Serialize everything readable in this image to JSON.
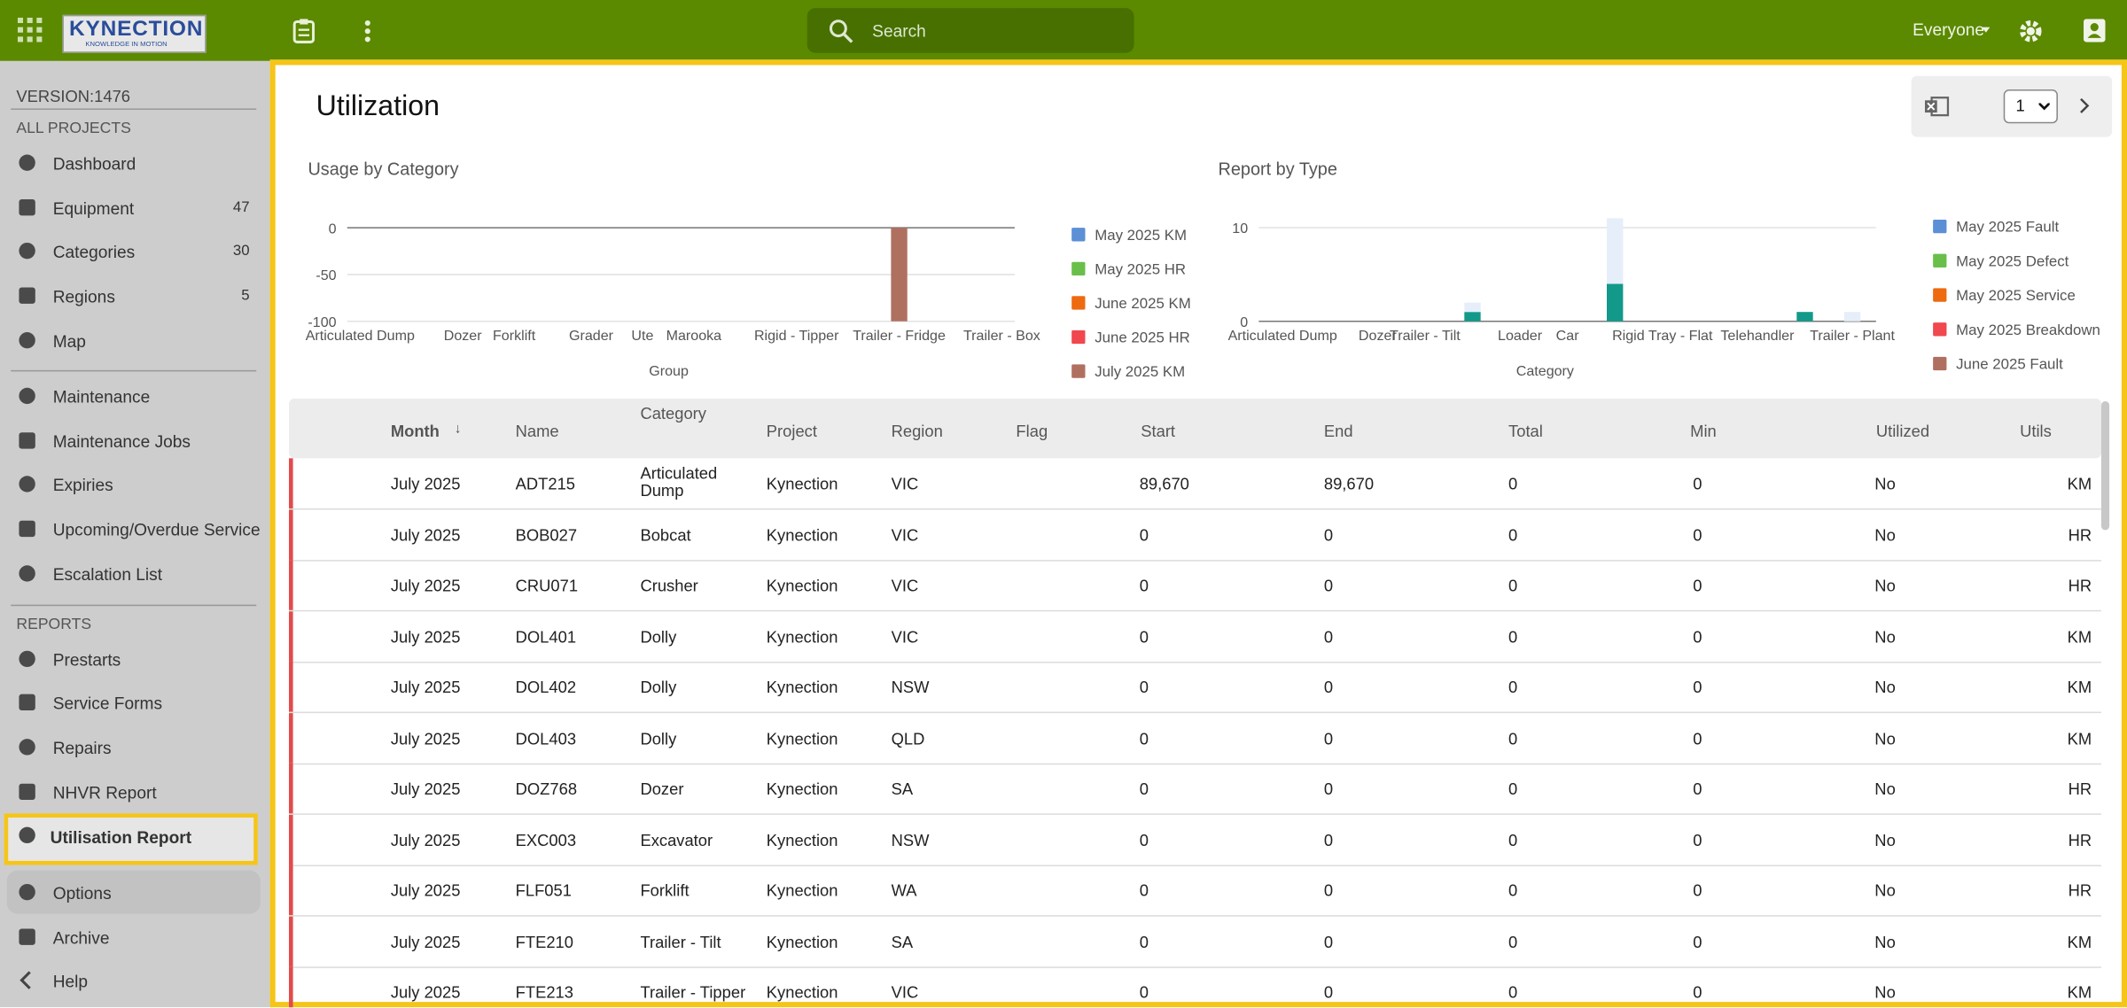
{
  "topbar": {
    "logo": "KYNECTION",
    "logo_tagline": "KNOWLEDGE IN MOTION",
    "search_placeholder": "Search",
    "user_filter": "Everyone"
  },
  "sidebar": {
    "version": "VERSION:1476",
    "sections": [
      {
        "heading": "ALL PROJECTS",
        "items": [
          {
            "label": "Dashboard"
          },
          {
            "label": "Equipment",
            "count": 47
          },
          {
            "label": "Categories",
            "count": 30
          },
          {
            "label": "Regions",
            "count": 5
          },
          {
            "label": "Map"
          }
        ]
      },
      {
        "items": [
          {
            "label": "Maintenance"
          },
          {
            "label": "Maintenance Jobs"
          },
          {
            "label": "Expiries"
          },
          {
            "label": "Upcoming/Overdue Service"
          },
          {
            "label": "Escalation List"
          }
        ]
      },
      {
        "heading": "REPORTS",
        "items": [
          {
            "label": "Prestarts"
          },
          {
            "label": "Service Forms"
          },
          {
            "label": "Repairs"
          },
          {
            "label": "NHVR Report"
          },
          {
            "label": "Utilisation Report"
          }
        ]
      },
      {
        "items": [
          {
            "label": "Options"
          },
          {
            "label": "Archive"
          },
          {
            "label": "Help"
          }
        ]
      }
    ]
  },
  "page": {
    "title": "Utilization",
    "page_select": 1
  },
  "charts": [
    {
      "type": "bar",
      "title": "Usage by Category",
      "x_label": "Group",
      "ylim": [
        -100,
        0
      ],
      "yticks": [
        0,
        -50,
        -100
      ],
      "legend": "right",
      "categories": [
        "Articulated Dump",
        null,
        null,
        null,
        "Dozer",
        null,
        "Forklift",
        null,
        null,
        "Grader",
        null,
        "Ute",
        null,
        "Marooka",
        null,
        null,
        null,
        "Rigid - Tipper",
        null,
        null,
        null,
        "Trailer - Fridge",
        null,
        null,
        null,
        "Trailer - Box"
      ],
      "series": [
        {
          "name": "May 2025 KM",
          "color": "#5b8fd6",
          "values": [
            0,
            0,
            0,
            0,
            0,
            0,
            0,
            0,
            0,
            0,
            0,
            0,
            0,
            0,
            0,
            0,
            0,
            0,
            0,
            0,
            0,
            0,
            0,
            0,
            0,
            0
          ]
        },
        {
          "name": "May 2025 HR",
          "color": "#6abf4b",
          "values": [
            0,
            0,
            0,
            0,
            0,
            0,
            0,
            0,
            0,
            0,
            0,
            0,
            0,
            0,
            0,
            0,
            0,
            0,
            0,
            0,
            0,
            0,
            0,
            0,
            0,
            0
          ]
        },
        {
          "name": "June 2025 KM",
          "color": "#ee6a10",
          "values": [
            0,
            0,
            0,
            0,
            0,
            0,
            0,
            0,
            0,
            0,
            0,
            0,
            0,
            0,
            0,
            0,
            0,
            0,
            0,
            0,
            0,
            0,
            0,
            0,
            0,
            0
          ]
        },
        {
          "name": "June 2025 HR",
          "color": "#f0484e",
          "values": [
            0,
            0,
            0,
            0,
            0,
            0,
            0,
            0,
            0,
            0,
            0,
            0,
            0,
            0,
            0,
            0,
            0,
            0,
            0,
            0,
            0,
            0,
            0,
            0,
            0,
            0
          ]
        },
        {
          "name": "July 2025 KM",
          "color": "#b07060",
          "values": [
            0,
            0,
            0,
            0,
            0,
            0,
            0,
            0,
            0,
            0,
            0,
            0,
            0,
            0,
            0,
            0,
            0,
            0,
            0,
            0,
            0,
            -100,
            0,
            0,
            0,
            0
          ]
        }
      ]
    },
    {
      "type": "bar",
      "title": "Report by Type",
      "x_label": "Category",
      "ylim": [
        0,
        11
      ],
      "yticks": [
        0,
        10
      ],
      "legend": "right",
      "categories": [
        "Articulated Dump",
        null,
        "Dozer",
        "Trailer - Tilt",
        null,
        "Loader",
        "Car",
        null,
        "Rigid Tray - Flat",
        null,
        "Telehandler",
        null,
        "Trailer - Plant"
      ],
      "series": [
        {
          "name": "May 2025 Fault",
          "color": "#5b8fd6",
          "values": [
            0,
            0,
            0,
            0,
            0,
            0,
            0,
            0,
            0,
            0,
            0,
            0,
            0
          ]
        },
        {
          "name": "May 2025 Defect",
          "color": "#6abf4b",
          "values": [
            0,
            0,
            0,
            0,
            0,
            0,
            0,
            0,
            0,
            0,
            0,
            0,
            0
          ]
        },
        {
          "name": "May 2025 Service",
          "color": "#ee6a10",
          "values": [
            0,
            0,
            0,
            0,
            0,
            0,
            0,
            0,
            0,
            0,
            0,
            0,
            0
          ]
        },
        {
          "name": "May 2025 Breakdown",
          "color": "#f0484e",
          "values": [
            0,
            0,
            0,
            0,
            0,
            0,
            0,
            0,
            0,
            0,
            0,
            0,
            0
          ]
        },
        {
          "name": "June 2025 Fault",
          "color": "#b07060",
          "values": [
            0,
            0,
            0,
            0,
            0,
            0,
            0,
            0,
            0,
            0,
            0,
            0,
            0
          ]
        },
        {
          "color": "#13998a",
          "values": [
            0,
            0,
            0,
            0,
            1,
            0,
            0,
            4,
            0,
            0,
            0,
            1,
            0
          ]
        },
        {
          "color": "#e6eefa",
          "values": [
            0,
            0,
            0,
            0,
            1,
            0,
            0,
            7,
            0,
            0,
            0,
            0,
            1
          ]
        }
      ]
    }
  ],
  "table": {
    "columns": [
      "Month",
      "Name",
      "Category",
      "Project",
      "Region",
      "Flag",
      "Start",
      "End",
      "Total",
      "Min",
      "Utilized",
      "Utils"
    ],
    "rows": [
      [
        "July 2025",
        "ADT215",
        "Articulated Dump",
        "Kynection",
        "VIC",
        "89,670",
        "89,670",
        "0",
        "0",
        "No",
        "KM"
      ],
      [
        "July 2025",
        "BOB027",
        "Bobcat",
        "Kynection",
        "VIC",
        "0",
        "0",
        "0",
        "0",
        "No",
        "HR"
      ],
      [
        "July 2025",
        "CRU071",
        "Crusher",
        "Kynection",
        "VIC",
        "0",
        "0",
        "0",
        "0",
        "No",
        "HR"
      ],
      [
        "July 2025",
        "DOL401",
        "Dolly",
        "Kynection",
        "VIC",
        "0",
        "0",
        "0",
        "0",
        "No",
        "KM"
      ],
      [
        "July 2025",
        "DOL402",
        "Dolly",
        "Kynection",
        "NSW",
        "0",
        "0",
        "0",
        "0",
        "No",
        "KM"
      ],
      [
        "July 2025",
        "DOL403",
        "Dolly",
        "Kynection",
        "QLD",
        "0",
        "0",
        "0",
        "0",
        "No",
        "KM"
      ],
      [
        "July 2025",
        "DOZ768",
        "Dozer",
        "Kynection",
        "SA",
        "0",
        "0",
        "0",
        "0",
        "No",
        "HR"
      ],
      [
        "July 2025",
        "EXC003",
        "Excavator",
        "Kynection",
        "NSW",
        "0",
        "0",
        "0",
        "0",
        "No",
        "HR"
      ],
      [
        "July 2025",
        "FLF051",
        "Forklift",
        "Kynection",
        "WA",
        "0",
        "0",
        "0",
        "0",
        "No",
        "HR"
      ],
      [
        "July 2025",
        "FTE210",
        "Trailer - Tilt",
        "Kynection",
        "SA",
        "0",
        "0",
        "0",
        "0",
        "No",
        "KM"
      ],
      [
        "July 2025",
        "FTE213",
        "Trailer - Tipper",
        "Kynection",
        "VIC",
        "0",
        "0",
        "0",
        "0",
        "No",
        "KM"
      ]
    ]
  }
}
